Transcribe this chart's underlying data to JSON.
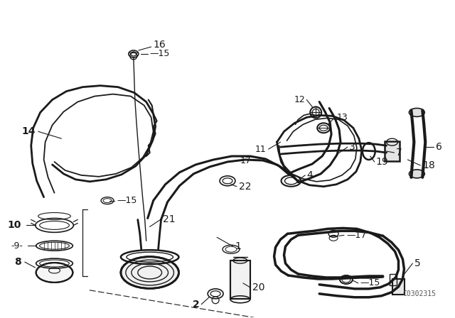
{
  "background_color": "#ffffff",
  "line_color": "#1a1a1a",
  "diagram_code": "C0302315",
  "figure_width": 6.4,
  "figure_height": 4.48
}
